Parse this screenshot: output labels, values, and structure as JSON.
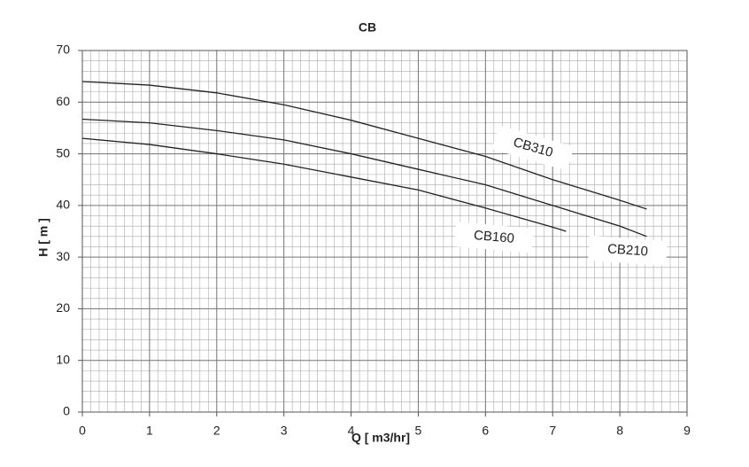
{
  "chart_data": {
    "type": "line",
    "title": "CB",
    "x_label": "Q [ m3/hr]",
    "y_label": "H [ m ]",
    "xlim": [
      0,
      9
    ],
    "xticks": [
      0,
      1,
      2,
      3,
      4,
      5,
      6,
      7,
      8,
      9
    ],
    "ylim": [
      0,
      70
    ],
    "yticks": [
      0,
      10,
      20,
      30,
      40,
      50,
      60,
      70
    ],
    "grid": true,
    "x_minor_divisions": 8,
    "y_minor_divisions": 5,
    "series": [
      {
        "name": "CB310",
        "color": "#222222",
        "x": [
          0,
          1,
          2,
          3,
          4,
          5,
          6,
          7,
          8,
          8.4
        ],
        "values": [
          64,
          63.3,
          61.8,
          59.5,
          56.5,
          53,
          49.5,
          45,
          41,
          39.3
        ]
      },
      {
        "name": "CB210",
        "color": "#222222",
        "x": [
          0,
          1,
          2,
          3,
          4,
          5,
          6,
          7,
          8,
          8.4
        ],
        "values": [
          56.7,
          56,
          54.5,
          52.7,
          50,
          47,
          44,
          40,
          36,
          34
        ]
      },
      {
        "name": "CB160",
        "color": "#222222",
        "x": [
          0,
          1,
          2,
          3,
          4,
          5,
          6,
          7,
          7.2
        ],
        "values": [
          53,
          51.8,
          50,
          48,
          45.5,
          43,
          39.5,
          35.8,
          35
        ]
      }
    ]
  }
}
